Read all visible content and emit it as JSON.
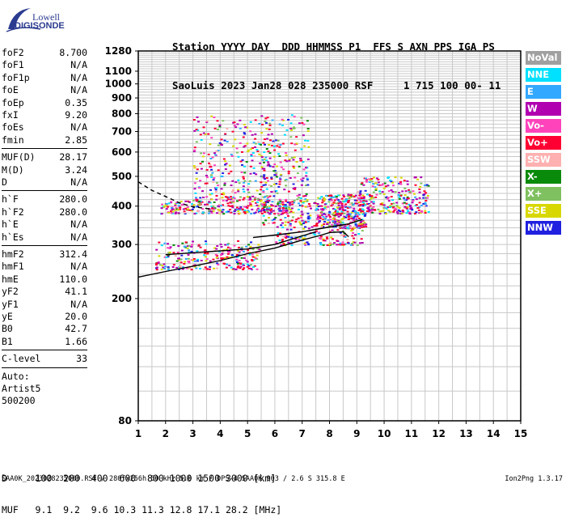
{
  "logo": {
    "lowell": "Lowell",
    "digisonde": "DIGISONDE"
  },
  "header": {
    "line1": "Station YYYY DAY  DDD HHMMSS P1  FFS S AXN PPS IGA PS",
    "line2": "SaoLuis 2023 Jan28 028 235000 RSF     1 715 100 00- 11"
  },
  "params": [
    {
      "name": "foF2",
      "value": "8.700"
    },
    {
      "name": "foF1",
      "value": "N/A"
    },
    {
      "name": "foF1p",
      "value": "N/A"
    },
    {
      "name": "foE",
      "value": "N/A"
    },
    {
      "name": "foEp",
      "value": "0.35"
    },
    {
      "name": "fxI",
      "value": "9.20"
    },
    {
      "name": "foEs",
      "value": "N/A"
    },
    {
      "name": "fmin",
      "value": "2.85"
    },
    {
      "name": "MUF(D)",
      "value": "28.17",
      "sep": true
    },
    {
      "name": "M(D)",
      "value": "3.24"
    },
    {
      "name": "D",
      "value": "N/A"
    },
    {
      "name": "h`F",
      "value": "280.0",
      "sep": true
    },
    {
      "name": "h`F2",
      "value": "280.0"
    },
    {
      "name": "h`E",
      "value": "N/A"
    },
    {
      "name": "h`Es",
      "value": "N/A"
    },
    {
      "name": "hmF2",
      "value": "312.4",
      "sep": true
    },
    {
      "name": "hmF1",
      "value": "N/A"
    },
    {
      "name": "hmE",
      "value": "110.0"
    },
    {
      "name": "yF2",
      "value": "41.1"
    },
    {
      "name": "yF1",
      "value": "N/A"
    },
    {
      "name": "yE",
      "value": "20.0"
    },
    {
      "name": "B0",
      "value": "42.7"
    },
    {
      "name": "B1",
      "value": "1.66"
    },
    {
      "name": "C-level",
      "value": "33",
      "sep": true
    },
    {
      "name": "Auto:",
      "value": "",
      "sep": true
    },
    {
      "name": "Artist5",
      "value": ""
    },
    {
      "name": "500200",
      "value": ""
    }
  ],
  "legend": [
    {
      "label": "NoVal",
      "color": "#a0a0a0"
    },
    {
      "label": "NNE",
      "color": "#00e0ff"
    },
    {
      "label": "E",
      "color": "#33a8ff"
    },
    {
      "label": "W",
      "color": "#b000b0"
    },
    {
      "label": "Vo-",
      "color": "#ff44bb"
    },
    {
      "label": "Vo+",
      "color": "#ff0033"
    },
    {
      "label": "SSW",
      "color": "#ffb0b0"
    },
    {
      "label": "X-",
      "color": "#0a8a0a"
    },
    {
      "label": "X+",
      "color": "#7fc060"
    },
    {
      "label": "SSE",
      "color": "#d8d800"
    },
    {
      "label": "NNW",
      "color": "#2020e0"
    }
  ],
  "muf": {
    "line1": "D     100  200  400  600  800 1000 1500 3000 [km]",
    "line2": "MUF   9.1  9.2  9.6 10.3 11.3 12.8 17.1 28.2 [MHz]"
  },
  "footer": {
    "left": "SAA0K_2023028235000.RSF / 280fx256h 50 kHz 5.0 km / DPS-4 SAA0K 903 / 2.6 S 315.8 E",
    "right": "Ion2Png 1.3.17"
  },
  "chart_data": {
    "type": "scatter",
    "xlim": [
      1,
      15
    ],
    "ylim": [
      80,
      1280
    ],
    "x_ticks": [
      1,
      2,
      3,
      4,
      5,
      6,
      7,
      8,
      9,
      10,
      11,
      12,
      13,
      14,
      15
    ],
    "y_ticks": [
      80,
      200,
      300,
      400,
      500,
      600,
      700,
      800,
      900,
      1000,
      1100,
      1280
    ],
    "y_scale": "log",
    "grid": true,
    "traces": [
      {
        "name": "o-trace",
        "style": "solid",
        "x": [
          1.0,
          2.0,
          3.0,
          4.0,
          5.0,
          6.0,
          7.0,
          7.6,
          8.0,
          8.5,
          8.7
        ],
        "y": [
          235,
          245,
          255,
          266,
          280,
          292,
          310,
          320,
          328,
          330,
          318
        ]
      },
      {
        "name": "o-trace upper",
        "style": "solid",
        "x": [
          2.0,
          3.0,
          4.0,
          5.0,
          6.0,
          7.0,
          7.5
        ],
        "y": [
          278,
          282,
          286,
          290,
          300,
          320,
          330
        ]
      },
      {
        "name": "x-trace",
        "style": "solid",
        "x": [
          5.2,
          6.0,
          7.0,
          8.0,
          8.7,
          9.2
        ],
        "y": [
          316,
          322,
          330,
          342,
          350,
          362
        ]
      },
      {
        "name": "profile",
        "style": "dashed",
        "x": [
          1.0,
          1.5,
          2.0,
          2.5,
          3.0,
          3.6
        ],
        "y": [
          480,
          450,
          430,
          410,
          398,
          392
        ]
      }
    ],
    "echo_clusters": [
      {
        "x": [
          1.6,
          5.4
        ],
        "y": [
          250,
          310
        ]
      },
      {
        "x": [
          1.8,
          6.5
        ],
        "y": [
          380,
          420
        ]
      },
      {
        "x": [
          6.0,
          9.2
        ],
        "y": [
          300,
          420
        ]
      },
      {
        "x": [
          7.5,
          9.3
        ],
        "y": [
          340,
          440
        ]
      },
      {
        "x": [
          9.0,
          11.6
        ],
        "y": [
          380,
          500
        ]
      },
      {
        "x": [
          3.0,
          5.6
        ],
        "y": [
          420,
          800
        ]
      },
      {
        "x": [
          5.5,
          7.2
        ],
        "y": [
          350,
          800
        ]
      }
    ]
  }
}
